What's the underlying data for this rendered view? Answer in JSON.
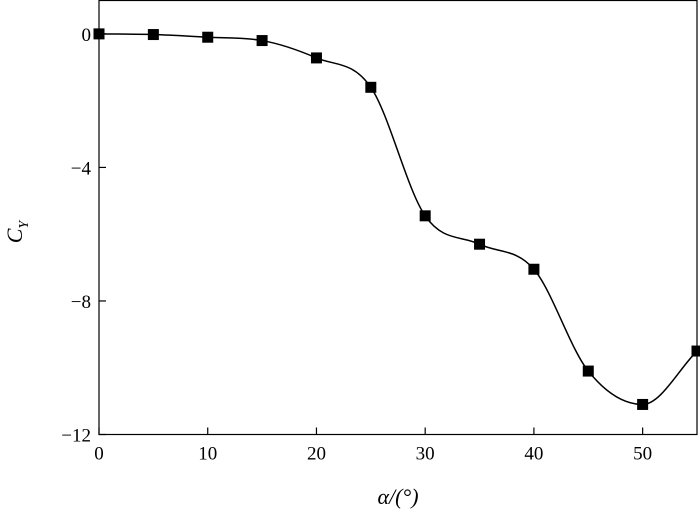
{
  "chart_data": {
    "type": "line",
    "title": "",
    "xlabel": "α/(°)",
    "ylabel": "C",
    "ylabel_subscript": "Y",
    "xlim": [
      0,
      55
    ],
    "ylim": [
      -12,
      1
    ],
    "xticks": [
      0,
      10,
      20,
      30,
      40,
      50
    ],
    "yticks": [
      0,
      -4,
      -8,
      -12
    ],
    "xtick_labels": [
      "0",
      "10",
      "20",
      "30",
      "40",
      "50"
    ],
    "ytick_labels": [
      "0",
      "−4",
      "−8",
      "−12"
    ],
    "grid": false,
    "legend": "none",
    "marker": "square",
    "series": [
      {
        "x": [
          0,
          5,
          10,
          15,
          20,
          25,
          30,
          35,
          40,
          45,
          50,
          55
        ],
        "values": [
          0,
          -0.02,
          -0.1,
          -0.2,
          -0.72,
          -1.6,
          -5.45,
          -6.3,
          -7.05,
          -10.1,
          -11.1,
          -9.5
        ]
      }
    ],
    "colors": {
      "line": "#000000",
      "marker": "#000000",
      "axis": "#000000"
    }
  }
}
